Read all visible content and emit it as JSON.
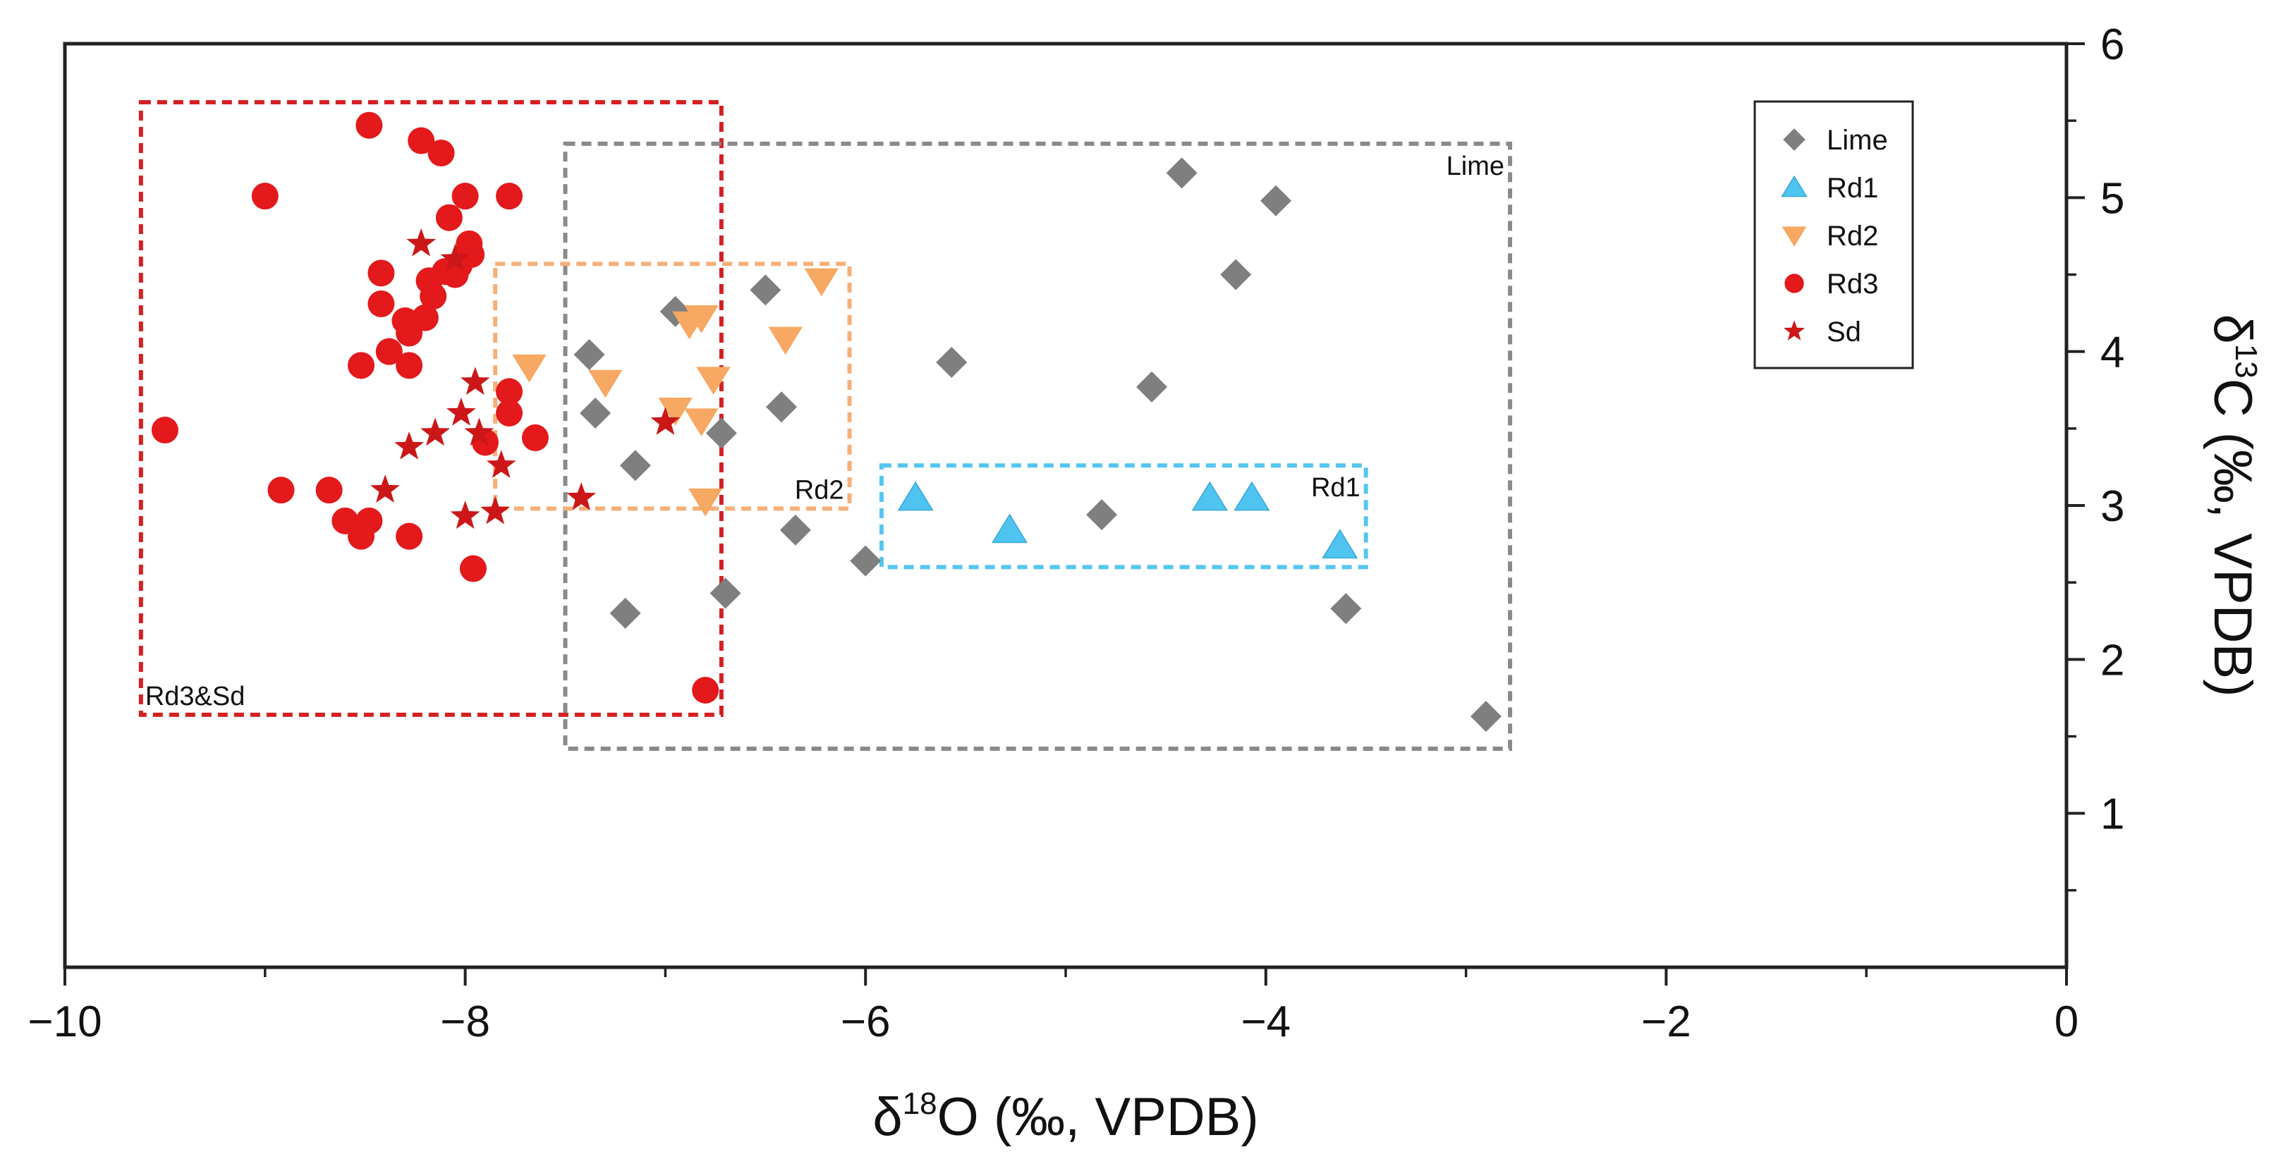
{
  "chart_data": {
    "type": "scatter",
    "xlabel": {
      "delta": "δ",
      "sup": "18",
      "rest": "O (‰, VPDB)"
    },
    "ylabel": {
      "delta": "δ",
      "sup": "13",
      "rest": "C (‰, VPDB)"
    },
    "xlim": [
      -10,
      0
    ],
    "ylim": [
      0,
      6
    ],
    "x_ticks": [
      -10,
      -8,
      -6,
      -4,
      -2,
      0
    ],
    "x_tick_labels": [
      "−10",
      "−8",
      "−6",
      "−4",
      "−2",
      "0"
    ],
    "y_ticks": [
      1,
      2,
      3,
      4,
      5,
      6
    ],
    "y_tick_labels": [
      "1",
      "2",
      "3",
      "4",
      "5",
      "6"
    ],
    "y_axis_side": "right",
    "grid": false,
    "legend_position": "top-right",
    "series": [
      {
        "name": "Lime",
        "marker": "diamond",
        "color": "#7f7f7f",
        "points": [
          [
            -7.38,
            3.98
          ],
          [
            -7.35,
            3.6
          ],
          [
            -7.2,
            2.3
          ],
          [
            -7.15,
            3.26
          ],
          [
            -6.95,
            4.26
          ],
          [
            -6.72,
            3.47
          ],
          [
            -6.7,
            2.43
          ],
          [
            -6.5,
            4.4
          ],
          [
            -6.42,
            3.64
          ],
          [
            -6.35,
            2.84
          ],
          [
            -6.0,
            2.64
          ],
          [
            -5.57,
            3.93
          ],
          [
            -4.82,
            2.94
          ],
          [
            -4.57,
            3.77
          ],
          [
            -4.42,
            5.16
          ],
          [
            -4.15,
            4.5
          ],
          [
            -3.95,
            4.98
          ],
          [
            -3.6,
            2.33
          ],
          [
            -2.9,
            1.63
          ]
        ]
      },
      {
        "name": "Rd1",
        "marker": "triangle-up",
        "color": "#4fc4f0",
        "points": [
          [
            -5.75,
            3.05
          ],
          [
            -5.28,
            2.84
          ],
          [
            -4.28,
            3.05
          ],
          [
            -4.07,
            3.05
          ],
          [
            -3.63,
            2.74
          ]
        ]
      },
      {
        "name": "Rd2",
        "marker": "triangle-down",
        "color": "#f7a862",
        "points": [
          [
            -7.68,
            3.9
          ],
          [
            -7.3,
            3.8
          ],
          [
            -6.95,
            3.62
          ],
          [
            -6.88,
            4.18
          ],
          [
            -6.82,
            4.22
          ],
          [
            -6.82,
            3.55
          ],
          [
            -6.76,
            3.82
          ],
          [
            -6.8,
            3.03
          ],
          [
            -6.4,
            4.08
          ],
          [
            -6.22,
            4.46
          ]
        ]
      },
      {
        "name": "Rd3",
        "marker": "circle",
        "color": "#e3191c",
        "points": [
          [
            -9.5,
            3.49
          ],
          [
            -9.0,
            5.01
          ],
          [
            -8.92,
            3.1
          ],
          [
            -8.68,
            3.1
          ],
          [
            -8.6,
            2.9
          ],
          [
            -8.52,
            3.91
          ],
          [
            -8.52,
            2.8
          ],
          [
            -8.48,
            5.47
          ],
          [
            -8.48,
            2.9
          ],
          [
            -8.42,
            4.51
          ],
          [
            -8.42,
            4.31
          ],
          [
            -8.38,
            4.0
          ],
          [
            -8.3,
            4.2
          ],
          [
            -8.28,
            4.12
          ],
          [
            -8.28,
            3.91
          ],
          [
            -8.28,
            2.8
          ],
          [
            -8.22,
            5.37
          ],
          [
            -8.2,
            4.22
          ],
          [
            -8.18,
            4.46
          ],
          [
            -8.16,
            4.36
          ],
          [
            -8.12,
            5.29
          ],
          [
            -8.1,
            4.52
          ],
          [
            -8.08,
            4.87
          ],
          [
            -8.05,
            4.5
          ],
          [
            -8.03,
            4.56
          ],
          [
            -8.0,
            5.01
          ],
          [
            -7.98,
            4.7
          ],
          [
            -7.97,
            4.63
          ],
          [
            -7.96,
            2.59
          ],
          [
            -7.78,
            5.01
          ],
          [
            -7.78,
            3.74
          ],
          [
            -7.78,
            3.6
          ],
          [
            -7.9,
            3.41
          ],
          [
            -7.65,
            3.44
          ],
          [
            -6.8,
            1.8
          ]
        ]
      },
      {
        "name": "Sd",
        "marker": "star",
        "color": "#cc1719",
        "points": [
          [
            -8.4,
            3.1
          ],
          [
            -8.28,
            3.38
          ],
          [
            -8.22,
            4.7
          ],
          [
            -8.15,
            3.47
          ],
          [
            -8.02,
            3.6
          ],
          [
            -8.0,
            2.93
          ],
          [
            -7.95,
            3.8
          ],
          [
            -7.93,
            3.47
          ],
          [
            -7.85,
            2.96
          ],
          [
            -7.82,
            3.26
          ],
          [
            -8.05,
            4.6
          ],
          [
            -7.42,
            3.05
          ],
          [
            -7.0,
            3.54
          ]
        ]
      }
    ],
    "regions": [
      {
        "label": "Rd3&Sd",
        "color": "#d42024",
        "x": [
          -9.62,
          -6.72
        ],
        "y": [
          1.64,
          5.62
        ],
        "label_anchor": "bottom-left"
      },
      {
        "label": "Lime",
        "color": "#8a8a8a",
        "x": [
          -7.5,
          -2.78
        ],
        "y": [
          1.42,
          5.35
        ],
        "label_anchor": "top-right"
      },
      {
        "label": "Rd2",
        "color": "#f5b07a",
        "x": [
          -7.85,
          -6.08
        ],
        "y": [
          2.98,
          4.57
        ],
        "label_anchor": "bottom-right"
      },
      {
        "label": "Rd1",
        "color": "#55c6f0",
        "x": [
          -5.92,
          -3.5
        ],
        "y": [
          2.6,
          3.26
        ],
        "label_anchor": "top-right"
      }
    ]
  }
}
